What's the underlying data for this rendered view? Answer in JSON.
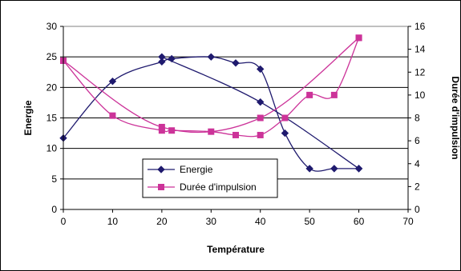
{
  "chart_data": {
    "type": "scatter",
    "xlabel": "Température",
    "ylabel": "Energie",
    "y2label": "Durée d'impulsion",
    "xlim": [
      0,
      70
    ],
    "ylim": [
      0,
      30
    ],
    "y2lim": [
      0,
      16
    ],
    "xticks": [
      0,
      10,
      20,
      30,
      40,
      50,
      60,
      70
    ],
    "yticks": [
      0,
      5,
      10,
      15,
      20,
      25,
      30
    ],
    "y2ticks": [
      0,
      2,
      4,
      6,
      8,
      10,
      12,
      14,
      16
    ],
    "grid": "horizontal major gridlines",
    "smooth": true,
    "legend_position": "bottom-center inside plot",
    "series": [
      {
        "name": "Energie",
        "axis": "left",
        "color": "#1f1a6e",
        "marker": "diamond",
        "x": [
          0,
          10,
          20,
          22,
          30,
          35,
          40,
          45,
          50,
          55,
          60
        ],
        "y": [
          11.7,
          21,
          24.2,
          24.7,
          25,
          24,
          23,
          12.5,
          6.7,
          6.7,
          6.7
        ]
      },
      {
        "name": "Energie",
        "axis": "left",
        "color": "#1f1a6e",
        "marker": "diamond",
        "x": [
          20,
          40,
          60
        ],
        "y": [
          25,
          17.6,
          6.7
        ]
      },
      {
        "name": "Durée d'impulsion",
        "axis": "right",
        "color": "#cc3399",
        "marker": "square",
        "x": [
          0,
          10,
          20,
          22,
          30,
          35,
          40,
          45,
          50,
          55,
          60
        ],
        "y": [
          13,
          8.2,
          6.9,
          6.9,
          6.8,
          6.5,
          6.5,
          8,
          10,
          10,
          15
        ]
      },
      {
        "name": "Durée d'impulsion",
        "axis": "right",
        "color": "#cc3399",
        "marker": "square",
        "x": [
          0,
          20,
          40,
          60
        ],
        "y": [
          13,
          7.2,
          8,
          15
        ]
      }
    ],
    "legend": [
      "Energie",
      "Durée d'impulsion"
    ]
  }
}
